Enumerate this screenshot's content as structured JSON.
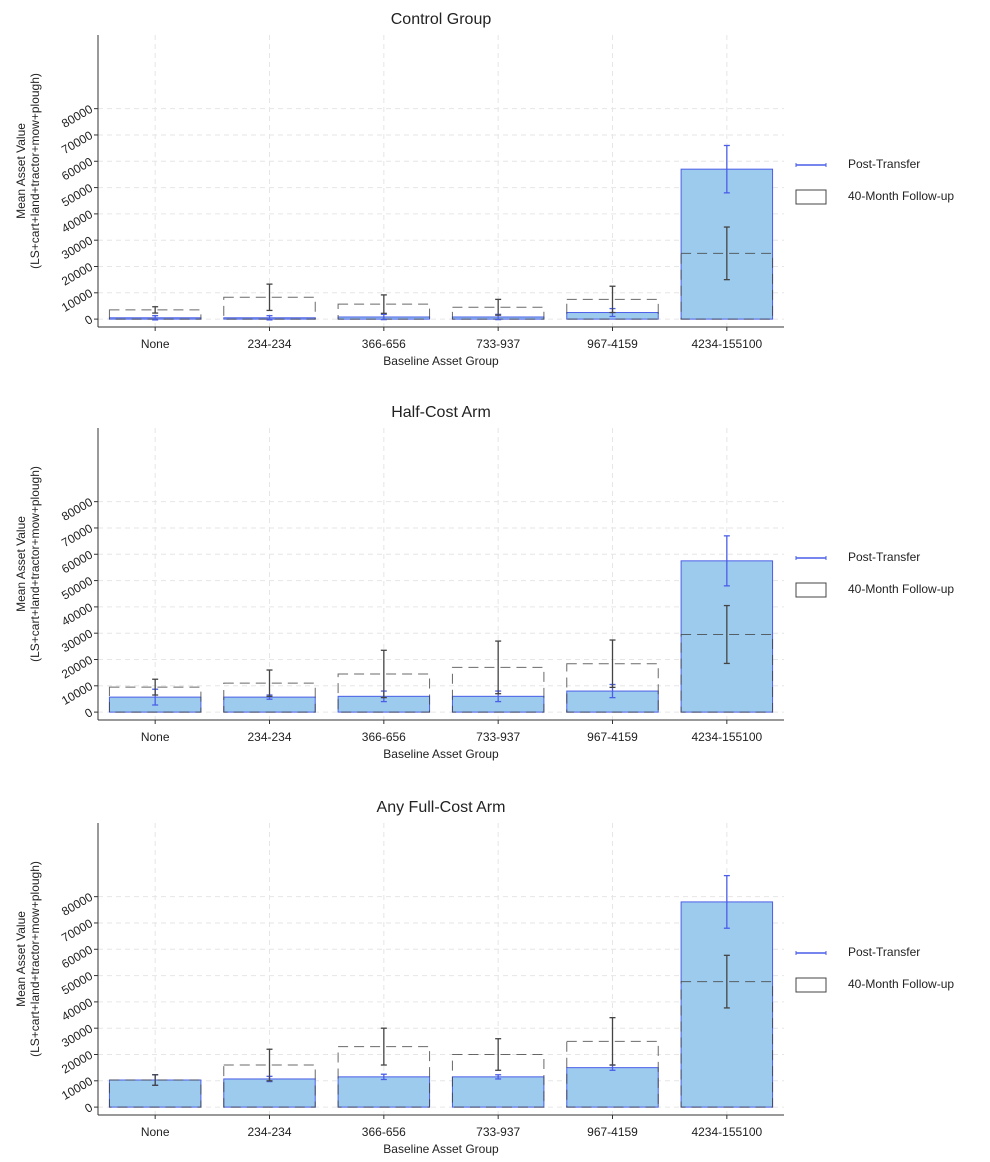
{
  "chart_data": [
    {
      "type": "bar",
      "title": "Control Group",
      "x_label": "Baseline Asset Group",
      "y_label": [
        "Mean Asset Value",
        "(LS+cart+land+tractor+mow+plough)"
      ],
      "categories": [
        "None",
        "234-234",
        "366-656",
        "733-937",
        "967-4159",
        "4234-155100"
      ],
      "series": [
        {
          "name": "Post-Transfer",
          "color": "#4a5ee8",
          "fill": "#9dcbee",
          "values": [
            500,
            500,
            800,
            800,
            2500,
            57000
          ],
          "errors": [
            800,
            800,
            1000,
            1000,
            1500,
            9000
          ]
        },
        {
          "name": "40-Month Follow-up",
          "color": "#444444",
          "values": [
            3500,
            8300,
            5700,
            4500,
            7500,
            25000
          ],
          "errors": [
            1200,
            5000,
            3500,
            3000,
            5000,
            10000
          ]
        }
      ],
      "ylim": [
        -3000,
        108000
      ],
      "yticks": [
        0,
        10000,
        20000,
        30000,
        40000,
        50000,
        60000,
        70000,
        80000
      ],
      "grid": true,
      "legend": "right"
    },
    {
      "type": "bar",
      "title": "Half-Cost Arm",
      "x_label": "Baseline Asset Group",
      "y_label": [
        "Mean Asset Value",
        "(LS+cart+land+tractor+mow+plough)"
      ],
      "categories": [
        "None",
        "234-234",
        "366-656",
        "733-937",
        "967-4159",
        "4234-155100"
      ],
      "series": [
        {
          "name": "Post-Transfer",
          "color": "#4a5ee8",
          "fill": "#9dcbee",
          "values": [
            5700,
            5700,
            6000,
            6000,
            8000,
            57500
          ],
          "errors": [
            3000,
            800,
            2000,
            2000,
            2500,
            9500
          ]
        },
        {
          "name": "40-Month Follow-up",
          "color": "#444444",
          "values": [
            9500,
            11000,
            14500,
            17000,
            18400,
            29500
          ],
          "errors": [
            3000,
            5000,
            9000,
            10000,
            9000,
            11000
          ]
        }
      ],
      "ylim": [
        -3000,
        108000
      ],
      "yticks": [
        0,
        10000,
        20000,
        30000,
        40000,
        50000,
        60000,
        70000,
        80000
      ],
      "grid": true,
      "legend": "right"
    },
    {
      "type": "bar",
      "title": "Any Full-Cost Arm",
      "x_label": "Baseline Asset Group",
      "y_label": [
        "Mean Asset Value",
        "(LS+cart+land+tractor+mow+plough)"
      ],
      "categories": [
        "None",
        "234-234",
        "366-656",
        "733-937",
        "967-4159",
        "4234-155100"
      ],
      "series": [
        {
          "name": "Post-Transfer",
          "color": "#4a5ee8",
          "fill": "#9dcbee",
          "values": [
            10300,
            10700,
            11500,
            11500,
            15000,
            78000
          ],
          "errors": [
            2000,
            1000,
            1000,
            800,
            1000,
            10000
          ]
        },
        {
          "name": "40-Month Follow-up",
          "color": "#444444",
          "values": [
            10300,
            16000,
            23000,
            20000,
            25000,
            47700
          ],
          "errors": [
            2000,
            6000,
            7000,
            6000,
            9000,
            10000
          ]
        }
      ],
      "ylim": [
        -3000,
        108000
      ],
      "yticks": [
        0,
        10000,
        20000,
        30000,
        40000,
        50000,
        60000,
        70000,
        80000
      ],
      "grid": true,
      "legend": "right"
    }
  ]
}
